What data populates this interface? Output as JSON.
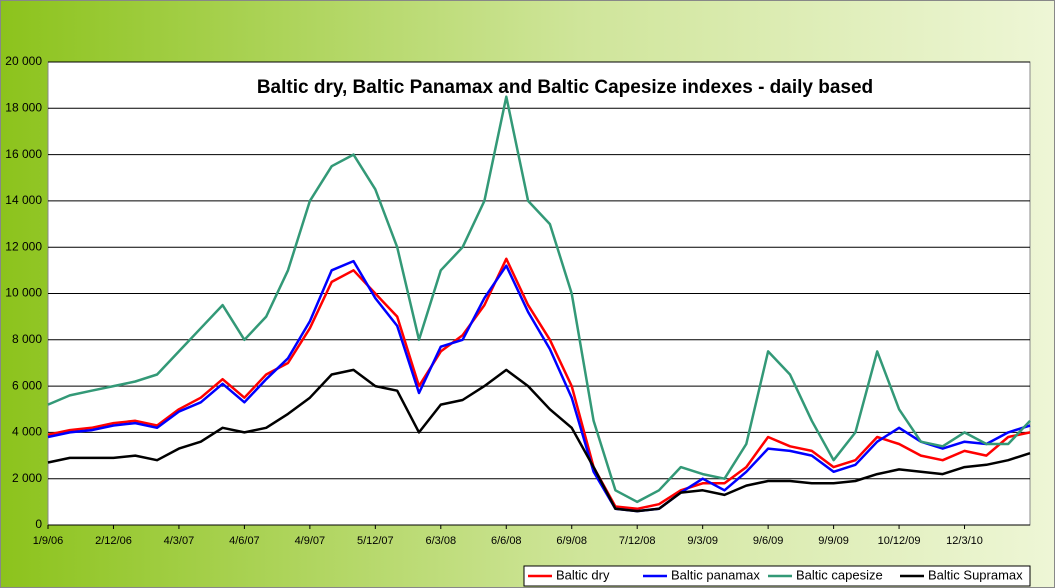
{
  "chart_data": {
    "type": "line",
    "title": "Baltic dry, Baltic Panamax and Baltic Capesize indexes - daily based",
    "categories": [
      "1/9/06",
      null,
      null,
      "2/12/06",
      null,
      null,
      "4/3/07",
      null,
      null,
      "4/6/07",
      null,
      null,
      "4/9/07",
      null,
      null,
      "5/12/07",
      null,
      null,
      "6/3/08",
      null,
      null,
      "6/6/08",
      null,
      null,
      "6/9/08",
      null,
      null,
      "7/12/08",
      null,
      null,
      "9/3/09",
      null,
      null,
      "9/6/09",
      null,
      null,
      "9/9/09",
      null,
      null,
      "10/12/09",
      null,
      null,
      "12/3/10",
      null,
      null,
      null
    ],
    "series": [
      {
        "name": "Baltic dry",
        "color": "#ff0000",
        "values": [
          3900,
          4100,
          4200,
          4400,
          4500,
          4300,
          5000,
          5500,
          6300,
          5500,
          6500,
          7000,
          8500,
          10500,
          11000,
          10000,
          9000,
          6000,
          7500,
          8200,
          9500,
          11500,
          9500,
          8000,
          6000,
          2500,
          800,
          700,
          900,
          1500,
          1800,
          1800,
          2500,
          3800,
          3400,
          3200,
          2500,
          2800,
          3800,
          3500,
          3000,
          2800,
          3200,
          3000,
          3800,
          4000
        ]
      },
      {
        "name": "Baltic panamax",
        "color": "#0000ff",
        "values": [
          3800,
          4000,
          4100,
          4300,
          4400,
          4200,
          4900,
          5300,
          6100,
          5300,
          6300,
          7200,
          8800,
          11000,
          11400,
          9800,
          8600,
          5700,
          7700,
          8000,
          9800,
          11200,
          9200,
          7600,
          5500,
          2300,
          700,
          600,
          700,
          1400,
          2000,
          1500,
          2300,
          3300,
          3200,
          3000,
          2300,
          2600,
          3600,
          4200,
          3600,
          3300,
          3600,
          3500,
          4000,
          4300
        ]
      },
      {
        "name": "Baltic capesize",
        "color": "#339977",
        "values": [
          5200,
          5600,
          5800,
          6000,
          6200,
          6500,
          7500,
          8500,
          9500,
          8000,
          9000,
          11000,
          14000,
          15500,
          16000,
          14500,
          12000,
          8000,
          11000,
          12000,
          14000,
          18500,
          14000,
          13000,
          10000,
          4500,
          1500,
          1000,
          1500,
          2500,
          2200,
          2000,
          3500,
          7500,
          6500,
          4500,
          2800,
          4000,
          7500,
          5000,
          3600,
          3400,
          4000,
          3500,
          3500,
          4500
        ]
      },
      {
        "name": "Baltic Supramax",
        "color": "#000000",
        "values": [
          2700,
          2900,
          2900,
          2900,
          3000,
          2800,
          3300,
          3600,
          4200,
          4000,
          4200,
          4800,
          5500,
          6500,
          6700,
          6000,
          5800,
          4000,
          5200,
          5400,
          6000,
          6700,
          6000,
          5000,
          4200,
          2500,
          700,
          600,
          700,
          1400,
          1500,
          1300,
          1700,
          1900,
          1900,
          1800,
          1800,
          1900,
          2200,
          2400,
          2300,
          2200,
          2500,
          2600,
          2800,
          3100
        ]
      }
    ],
    "ylim": [
      0,
      20000
    ],
    "yticks": [
      0,
      {
        "value": 2000,
        "label": "2 000"
      },
      {
        "value": 4000,
        "label": "4 000"
      },
      {
        "value": 6000,
        "label": "6 000"
      },
      {
        "value": 8000,
        "label": "8 000"
      },
      {
        "value": 10000,
        "label": "10 000"
      },
      {
        "value": 12000,
        "label": "12 000"
      },
      {
        "value": 14000,
        "label": "14 000"
      },
      {
        "value": 16000,
        "label": "16 000"
      },
      {
        "value": 18000,
        "label": "18 000"
      },
      {
        "value": 20000,
        "label": "20 000"
      }
    ],
    "grid": true,
    "legend": "bottom-right"
  }
}
